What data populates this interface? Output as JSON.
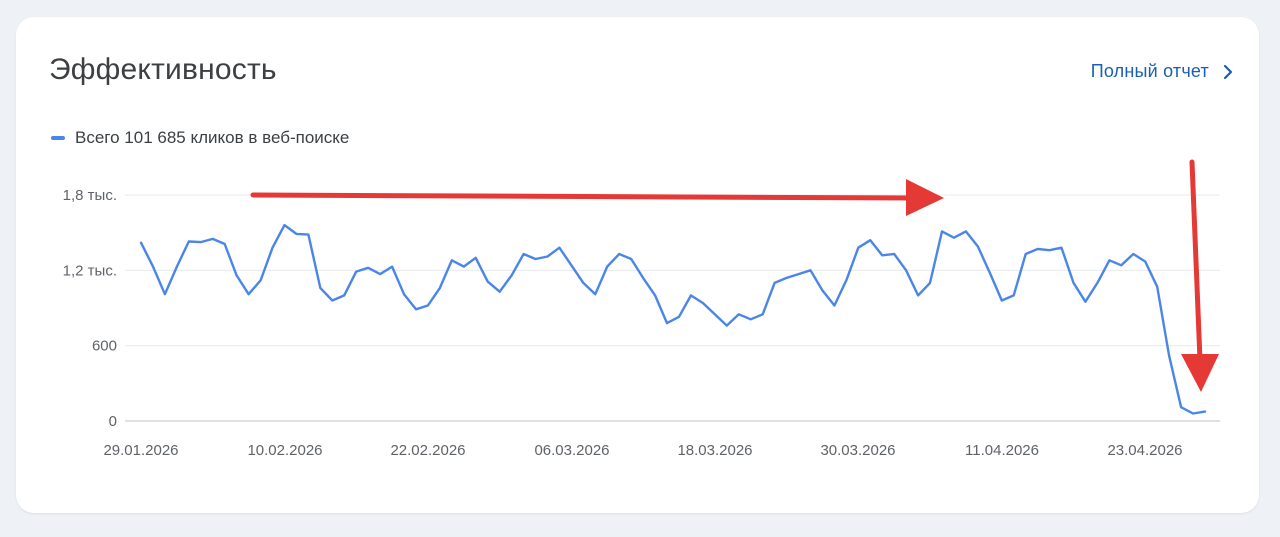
{
  "header": {
    "title": "Эффективность",
    "report_link": "Полный отчет"
  },
  "legend": {
    "label": "Всего 101 685 кликов в веб-поиске"
  },
  "colors": {
    "series": "#4a86e8",
    "annotation_arrows": "#e53935",
    "link": "#1a5fb4"
  },
  "icons": {
    "report_link": "chevron-right-icon"
  },
  "chart_data": {
    "type": "line",
    "y_ticks": [
      "0",
      "600",
      "1,2 тыс.",
      "1,8 тыс."
    ],
    "y_tick_values": [
      0,
      600,
      1200,
      1800
    ],
    "ylim": [
      0,
      1800
    ],
    "x_ticks": [
      "29.01.2026",
      "10.02.2026",
      "22.02.2026",
      "06.03.2026",
      "18.03.2026",
      "30.03.2026",
      "11.04.2026",
      "23.04.2026"
    ],
    "x_start": "2026-01-29",
    "grid": true,
    "series": [
      {
        "name": "Всего 101 685 кликов в веб-поиске",
        "values": [
          1420,
          1230,
          1010,
          1230,
          1430,
          1425,
          1450,
          1410,
          1160,
          1010,
          1120,
          1380,
          1560,
          1490,
          1485,
          1060,
          960,
          1000,
          1190,
          1220,
          1170,
          1230,
          1010,
          890,
          920,
          1060,
          1280,
          1230,
          1300,
          1110,
          1030,
          1160,
          1330,
          1290,
          1310,
          1380,
          1240,
          1100,
          1010,
          1230,
          1330,
          1290,
          1140,
          1000,
          780,
          830,
          1000,
          940,
          850,
          760,
          850,
          810,
          850,
          1100,
          1140,
          1170,
          1200,
          1040,
          920,
          1120,
          1380,
          1440,
          1320,
          1330,
          1200,
          1000,
          1100,
          1510,
          1460,
          1510,
          1390,
          1180,
          960,
          1000,
          1330,
          1370,
          1360,
          1380,
          1100,
          950,
          1100,
          1280,
          1240,
          1330,
          1270,
          1070,
          520,
          110,
          60,
          75
        ]
      }
    ]
  }
}
